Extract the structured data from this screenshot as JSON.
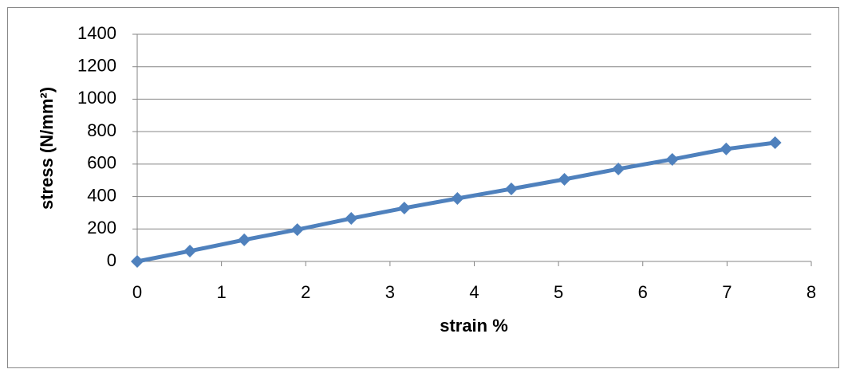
{
  "chart_data": {
    "type": "line",
    "x_label": "strain %",
    "y_label": "stress (N/mm²)",
    "x": [
      0,
      0.625,
      1.27,
      1.9,
      2.54,
      3.17,
      3.8,
      4.44,
      5.07,
      5.71,
      6.35,
      6.99,
      7.57
    ],
    "series": [
      {
        "color": "#4f81bd",
        "values": [
          0,
          64,
          133,
          196,
          265,
          329,
          388,
          447,
          506,
          570,
          629,
          693,
          732
        ]
      }
    ],
    "xlim": [
      0,
      8
    ],
    "xticks": [
      0,
      1,
      2,
      3,
      4,
      5,
      6,
      7,
      8
    ],
    "ylim": [
      0,
      1400
    ],
    "yticks": [
      0,
      200,
      400,
      600,
      800,
      1000,
      1200,
      1400
    ],
    "grid": true,
    "marker": "diamond"
  }
}
